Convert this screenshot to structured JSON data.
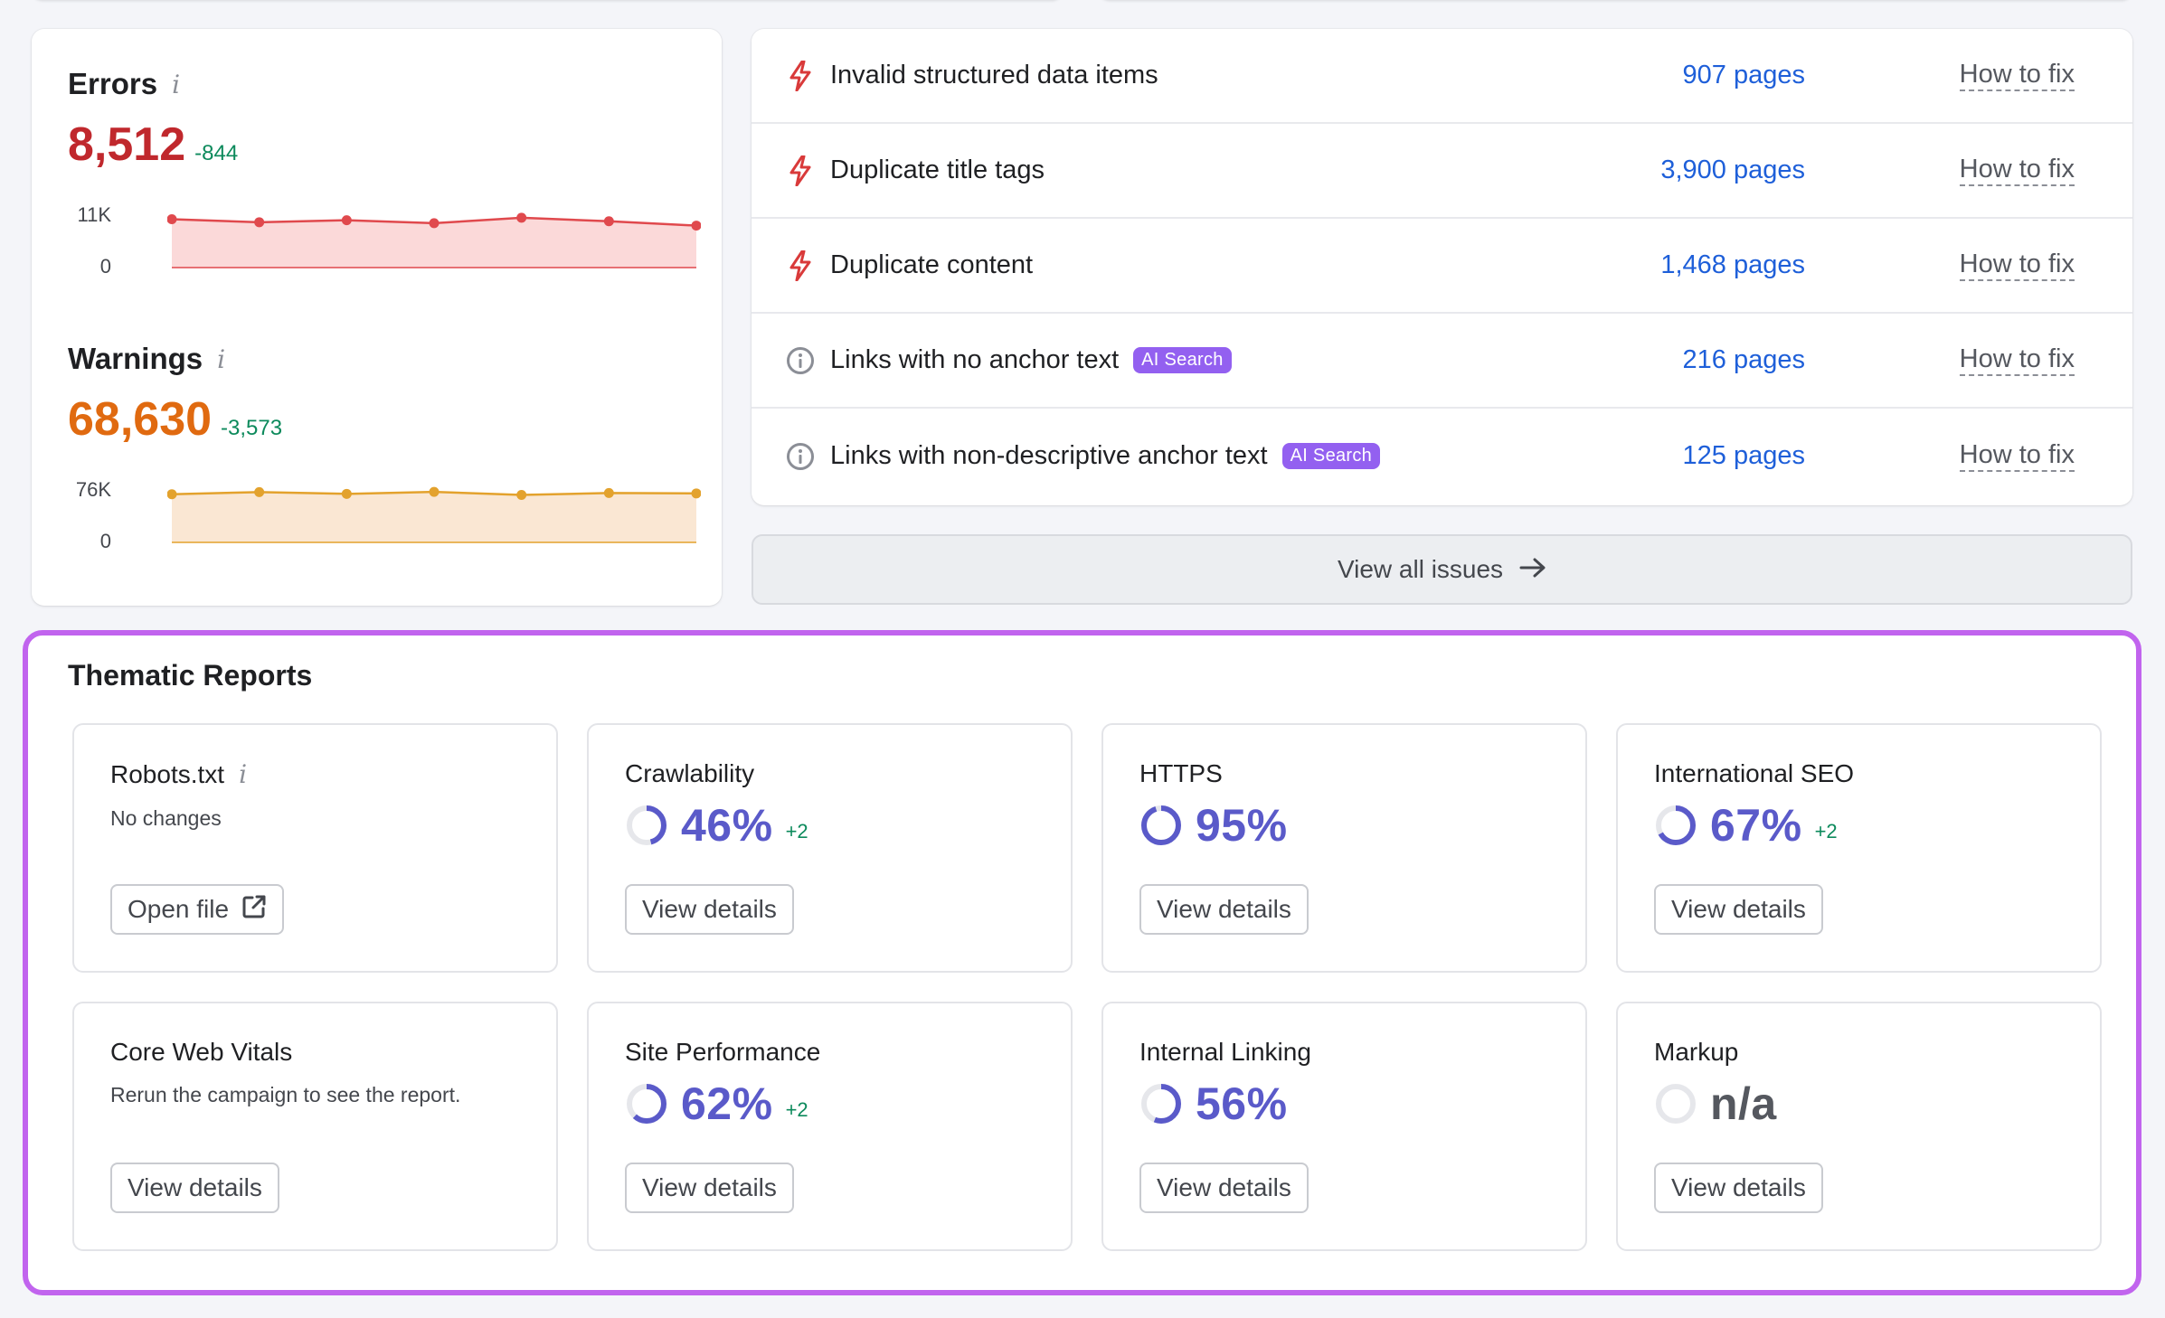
{
  "metrics": {
    "errors": {
      "title": "Errors",
      "value": "8,512",
      "delta": "-844",
      "y_max_label": "11K",
      "y_min_label": "0",
      "trend": [
        9800,
        9200,
        9600,
        9000,
        10100,
        9400,
        8512
      ],
      "trend_max": 11000,
      "color": "#c0282d",
      "line_color": "#e0494d",
      "fill_color": "#fbd9d9"
    },
    "warnings": {
      "title": "Warnings",
      "value": "68,630",
      "delta": "-3,573",
      "y_max_label": "76K",
      "y_min_label": "0",
      "trend": [
        67500,
        70500,
        68000,
        70800,
        66500,
        69200,
        68630
      ],
      "trend_max": 76000,
      "color": "#e06a10",
      "line_color": "#e3a22d",
      "fill_color": "#fae7d3"
    }
  },
  "issues": [
    {
      "icon": "error-bolt-icon",
      "name": "Invalid structured data items",
      "badge": "",
      "pages": "907 pages",
      "fix": "How to fix"
    },
    {
      "icon": "error-bolt-icon",
      "name": "Duplicate title tags",
      "badge": "",
      "pages": "3,900 pages",
      "fix": "How to fix"
    },
    {
      "icon": "error-bolt-icon",
      "name": "Duplicate content",
      "badge": "",
      "pages": "1,468 pages",
      "fix": "How to fix"
    },
    {
      "icon": "info-circle-icon",
      "name": "Links with no anchor text",
      "badge": "AI Search",
      "pages": "216 pages",
      "fix": "How to fix"
    },
    {
      "icon": "info-circle-icon",
      "name": "Links with non-descriptive anchor text",
      "badge": "AI Search",
      "pages": "125 pages",
      "fix": "How to fix"
    }
  ],
  "view_all": {
    "label": "View all issues",
    "icon": "arrow-right-icon"
  },
  "thematic": {
    "title": "Thematic Reports",
    "reports": [
      {
        "name": "Robots.txt",
        "info": true,
        "sub": "No changes",
        "score": "",
        "percent": null,
        "delta": "",
        "button": "Open file",
        "button_icon": "external-link-icon"
      },
      {
        "name": "Crawlability",
        "info": false,
        "sub": "",
        "score": "46%",
        "percent": 46,
        "delta": "+2",
        "button": "View details",
        "button_icon": ""
      },
      {
        "name": "HTTPS",
        "info": false,
        "sub": "",
        "score": "95%",
        "percent": 95,
        "delta": "",
        "button": "View details",
        "button_icon": ""
      },
      {
        "name": "International SEO",
        "info": false,
        "sub": "",
        "score": "67%",
        "percent": 67,
        "delta": "+2",
        "button": "View details",
        "button_icon": ""
      },
      {
        "name": "Core Web Vitals",
        "info": false,
        "sub": "Rerun the campaign to see the report.",
        "score": "",
        "percent": null,
        "delta": "",
        "button": "View details",
        "button_icon": ""
      },
      {
        "name": "Site Performance",
        "info": false,
        "sub": "",
        "score": "62%",
        "percent": 62,
        "delta": "+2",
        "button": "View details",
        "button_icon": ""
      },
      {
        "name": "Internal Linking",
        "info": false,
        "sub": "",
        "score": "56%",
        "percent": 56,
        "delta": "",
        "button": "View details",
        "button_icon": ""
      },
      {
        "name": "Markup",
        "info": false,
        "sub": "",
        "score": "n/a",
        "percent": 0,
        "delta": "",
        "button": "View details",
        "button_icon": ""
      }
    ]
  },
  "colors": {
    "accent_purple": "#5a5ac9",
    "ring_track": "#e6e7eb",
    "highlight_border": "#c164ee",
    "link_blue": "#1e5fd9",
    "delta_green": "#0d8a5c"
  }
}
